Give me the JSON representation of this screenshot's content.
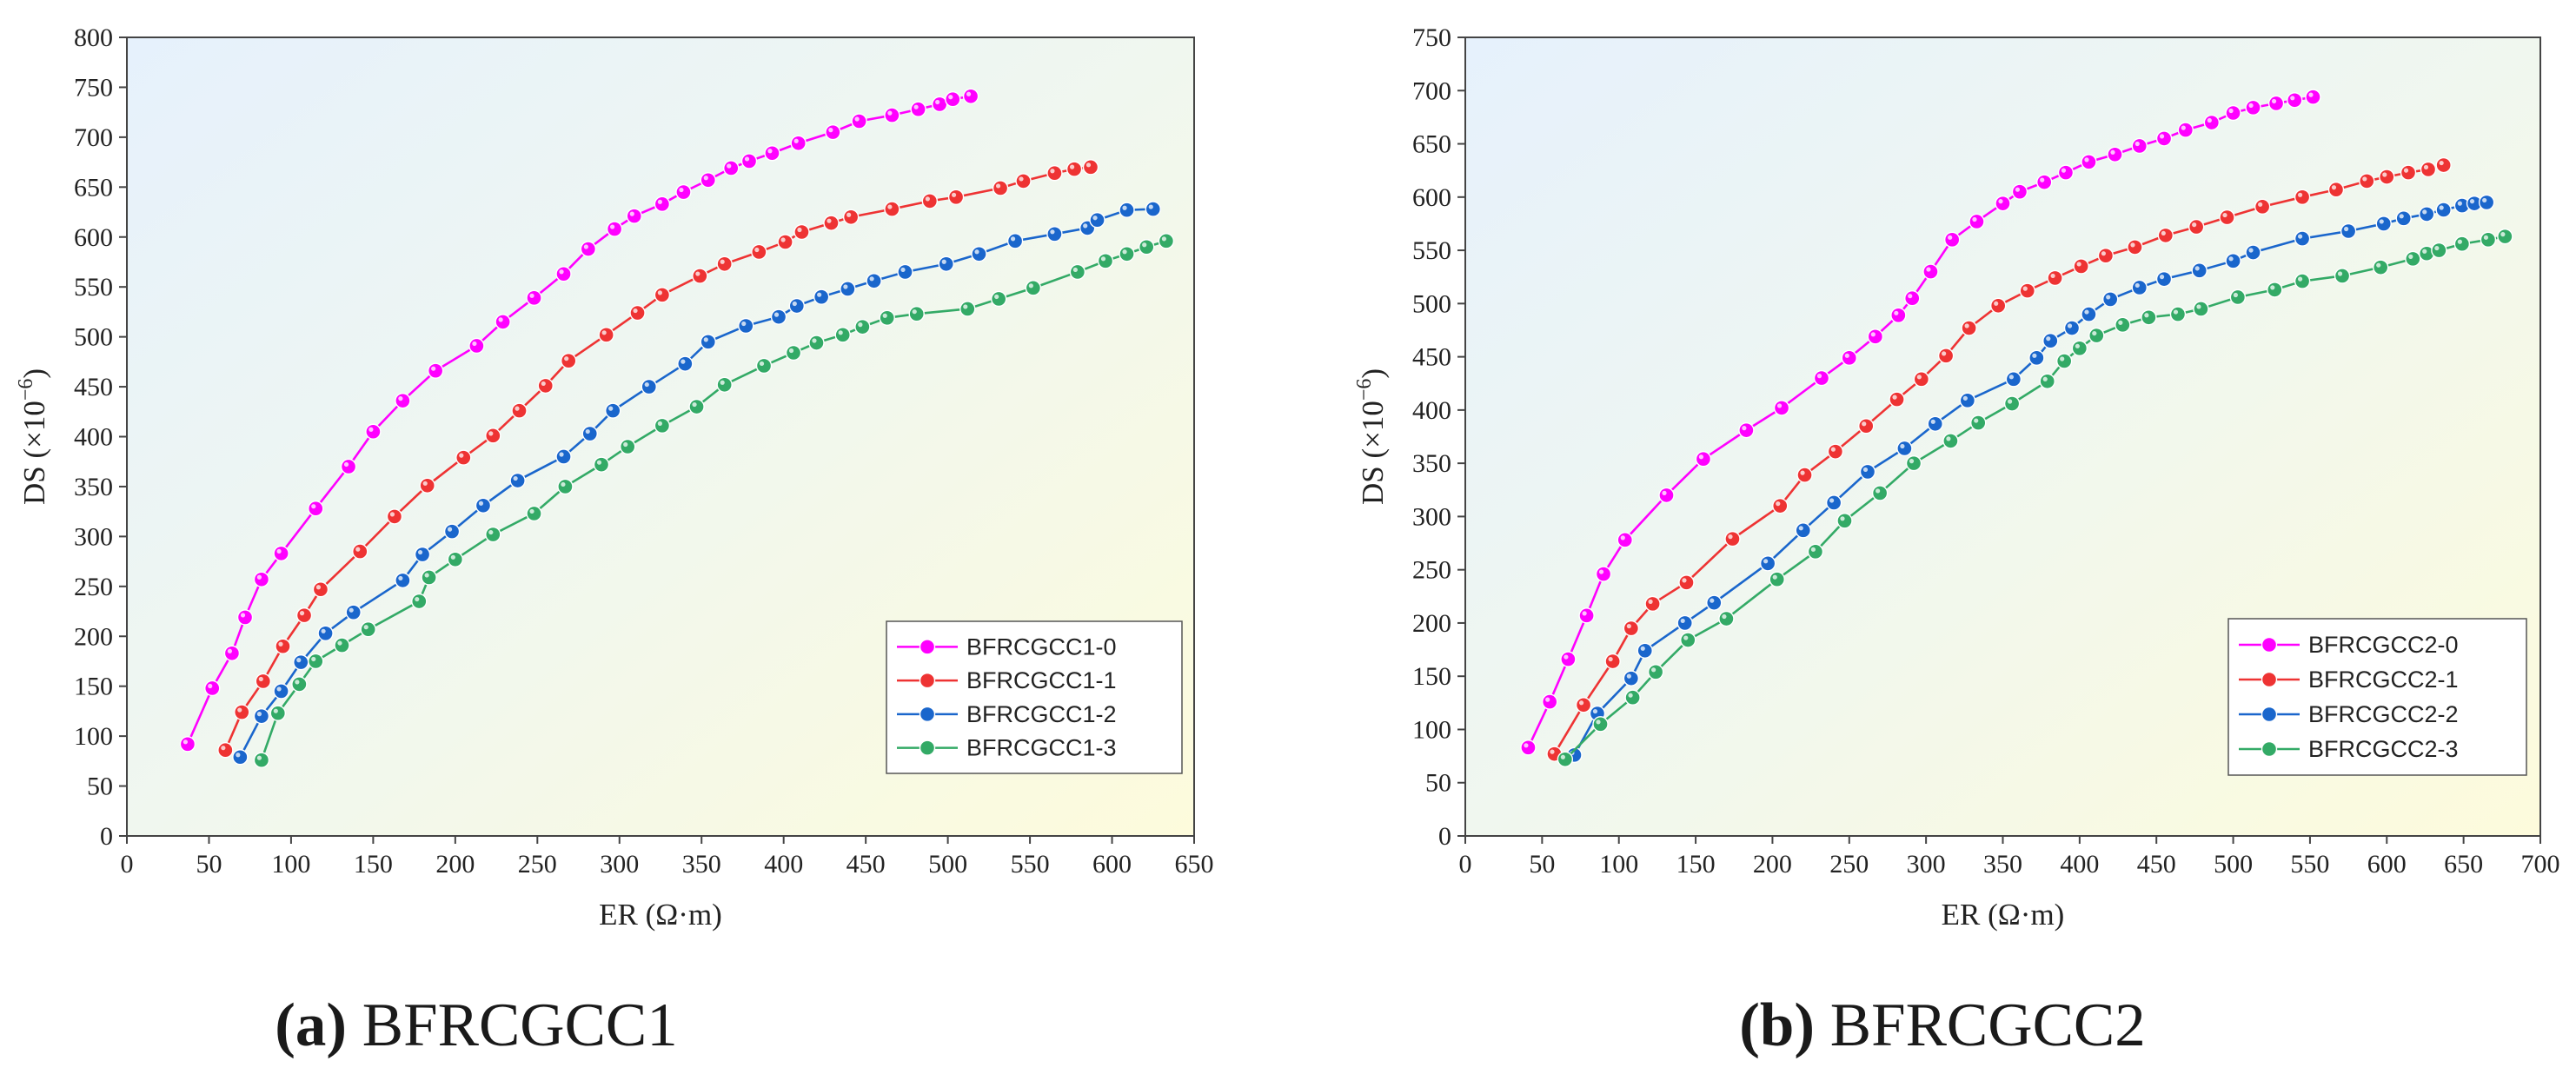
{
  "figure": {
    "captions": [
      {
        "letter": "(a)",
        "name": "BFRCGCC1"
      },
      {
        "letter": "(b)",
        "name": "BFRCGCC2"
      }
    ]
  },
  "chart_data": [
    {
      "type": "line",
      "panel": "a",
      "title": "",
      "xlabel": "ER (Ω·m)",
      "ylabel": "DS (×10⁻⁶)",
      "ylabel_base": "DS (×10",
      "ylabel_exp": "−6",
      "ylabel_close": ")",
      "xlim": [
        0,
        650
      ],
      "ylim": [
        0,
        800
      ],
      "xticks": [
        0,
        50,
        100,
        150,
        200,
        250,
        300,
        350,
        400,
        450,
        500,
        550,
        600,
        650
      ],
      "yticks": [
        0,
        50,
        100,
        150,
        200,
        250,
        300,
        350,
        400,
        450,
        500,
        550,
        600,
        650,
        700,
        750,
        800
      ],
      "grid": false,
      "legend_position": "bottom-right",
      "series": [
        {
          "name": "BFRCGCC1-0",
          "color": "#ff00ff",
          "x": [
            37,
            52,
            64,
            72,
            82,
            94,
            115,
            135,
            150,
            168,
            188,
            213,
            229,
            248,
            266,
            281,
            297,
            309,
            326,
            339,
            354,
            368,
            379,
            393,
            409,
            430,
            446,
            466,
            482,
            495,
            503,
            514
          ],
          "y": [
            92,
            148,
            183,
            219,
            257,
            283,
            328,
            370,
            405,
            436,
            466,
            491,
            515,
            539,
            563,
            588,
            608,
            621,
            633,
            645,
            657,
            669,
            676,
            684,
            694,
            705,
            716,
            722,
            728,
            733,
            738,
            741
          ]
        },
        {
          "name": "BFRCGCC1-1",
          "color": "#ee3333",
          "x": [
            60,
            70,
            83,
            95,
            108,
            118,
            142,
            163,
            183,
            205,
            223,
            239,
            255,
            269,
            292,
            311,
            326,
            349,
            364,
            385,
            401,
            411,
            429,
            441,
            466,
            489,
            505,
            532,
            546,
            565,
            577,
            587
          ],
          "y": [
            86,
            124,
            155,
            190,
            221,
            247,
            285,
            320,
            351,
            379,
            401,
            426,
            451,
            476,
            502,
            524,
            542,
            561,
            573,
            585,
            595,
            605,
            614,
            620,
            628,
            636,
            640,
            649,
            656,
            664,
            668,
            670
          ]
        },
        {
          "name": "BFRCGCC1-2",
          "color": "#1a66cc",
          "x": [
            69,
            82,
            94,
            106,
            121,
            138,
            168,
            180,
            198,
            217,
            238,
            266,
            282,
            296,
            318,
            340,
            354,
            377,
            397,
            408,
            423,
            439,
            455,
            474,
            499,
            519,
            541,
            565,
            585,
            591,
            609,
            625
          ],
          "y": [
            79,
            120,
            145,
            174,
            203,
            224,
            256,
            282,
            305,
            331,
            356,
            380,
            403,
            426,
            450,
            473,
            495,
            511,
            520,
            531,
            540,
            548,
            556,
            565,
            573,
            583,
            596,
            603,
            609,
            617,
            627,
            628
          ]
        },
        {
          "name": "BFRCGCC1-3",
          "color": "#33aa66",
          "x": [
            82,
            92,
            105,
            115,
            131,
            147,
            178,
            184,
            200,
            223,
            248,
            267,
            289,
            305,
            326,
            347,
            364,
            388,
            406,
            420,
            436,
            448,
            463,
            481,
            512,
            531,
            552,
            579,
            596,
            609,
            621,
            633
          ],
          "y": [
            76,
            123,
            152,
            175,
            191,
            207,
            235,
            259,
            277,
            302,
            323,
            350,
            372,
            390,
            411,
            430,
            452,
            471,
            484,
            494,
            502,
            510,
            519,
            523,
            528,
            538,
            549,
            565,
            576,
            583,
            590,
            596
          ]
        }
      ]
    },
    {
      "type": "line",
      "panel": "b",
      "title": "",
      "xlabel": "ER (Ω·m)",
      "ylabel": "DS (×10⁻⁶)",
      "ylabel_base": "DS (×10",
      "ylabel_exp": "−6",
      "ylabel_close": ")",
      "xlim": [
        0,
        700
      ],
      "ylim": [
        0,
        750
      ],
      "xticks": [
        0,
        50,
        100,
        150,
        200,
        250,
        300,
        350,
        400,
        450,
        500,
        550,
        600,
        650,
        700
      ],
      "yticks": [
        0,
        50,
        100,
        150,
        200,
        250,
        300,
        350,
        400,
        450,
        500,
        550,
        600,
        650,
        700,
        750
      ],
      "grid": false,
      "legend_position": "bottom-right",
      "series": [
        {
          "name": "BFRCGCC2-0",
          "color": "#ff00ff",
          "x": [
            41,
            55,
            67,
            79,
            90,
            104,
            131,
            155,
            183,
            206,
            232,
            250,
            267,
            282,
            291,
            303,
            317,
            333,
            350,
            361,
            377,
            391,
            406,
            423,
            439,
            455,
            469,
            486,
            500,
            513,
            528,
            540,
            552
          ],
          "y": [
            83,
            126,
            166,
            207,
            246,
            278,
            320,
            354,
            381,
            402,
            430,
            449,
            469,
            489,
            505,
            530,
            560,
            577,
            594,
            605,
            614,
            623,
            633,
            640,
            648,
            655,
            663,
            670,
            679,
            684,
            688,
            691,
            694
          ]
        },
        {
          "name": "BFRCGCC2-1",
          "color": "#ee3333",
          "x": [
            58,
            77,
            96,
            108,
            122,
            144,
            174,
            205,
            221,
            241,
            261,
            281,
            297,
            313,
            328,
            347,
            366,
            384,
            401,
            417,
            436,
            456,
            476,
            496,
            519,
            545,
            567,
            587,
            600,
            614,
            627,
            637
          ],
          "y": [
            77,
            123,
            164,
            195,
            218,
            238,
            279,
            310,
            339,
            361,
            385,
            410,
            429,
            451,
            477,
            498,
            512,
            524,
            535,
            545,
            553,
            564,
            572,
            581,
            591,
            600,
            607,
            615,
            619,
            623,
            626,
            630
          ]
        },
        {
          "name": "BFRCGCC2-2",
          "color": "#1a66cc",
          "x": [
            71,
            86,
            108,
            117,
            143,
            162,
            197,
            220,
            240,
            262,
            286,
            306,
            327,
            357,
            372,
            381,
            395,
            406,
            420,
            439,
            455,
            478,
            500,
            513,
            545,
            575,
            598,
            611,
            626,
            637,
            649,
            657,
            665
          ],
          "y": [
            76,
            115,
            148,
            174,
            200,
            219,
            256,
            287,
            313,
            342,
            364,
            387,
            409,
            429,
            449,
            465,
            477,
            490,
            504,
            515,
            523,
            531,
            540,
            548,
            561,
            568,
            575,
            580,
            584,
            588,
            592,
            594,
            595
          ]
        },
        {
          "name": "BFRCGCC2-3",
          "color": "#33aa66",
          "x": [
            65,
            88,
            109,
            124,
            145,
            170,
            203,
            228,
            247,
            270,
            292,
            316,
            334,
            356,
            379,
            390,
            400,
            411,
            428,
            445,
            464,
            479,
            503,
            527,
            545,
            571,
            596,
            617,
            626,
            634,
            649,
            666,
            677
          ],
          "y": [
            72,
            105,
            130,
            154,
            184,
            204,
            241,
            267,
            296,
            322,
            350,
            371,
            388,
            406,
            427,
            446,
            458,
            470,
            480,
            487,
            490,
            495,
            506,
            513,
            521,
            526,
            534,
            542,
            547,
            550,
            556,
            560,
            563
          ]
        }
      ]
    }
  ]
}
